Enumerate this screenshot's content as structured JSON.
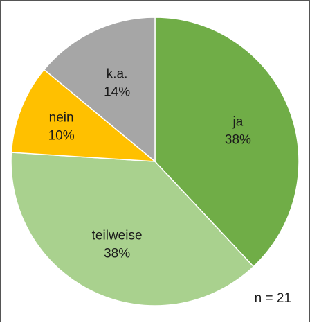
{
  "chart_data": {
    "type": "pie",
    "categories": [
      "ja",
      "teilweise",
      "nein",
      "k.a."
    ],
    "values": [
      38,
      38,
      10,
      14
    ],
    "value_labels": [
      "38%",
      "38%",
      "10%",
      "14%"
    ],
    "colors": [
      "#70ad47",
      "#a9d18e",
      "#ffc000",
      "#a6a6a6"
    ],
    "annotations": [
      "n = 21"
    ],
    "start": "top, clockwise",
    "legend": "none (labels on slices)"
  }
}
